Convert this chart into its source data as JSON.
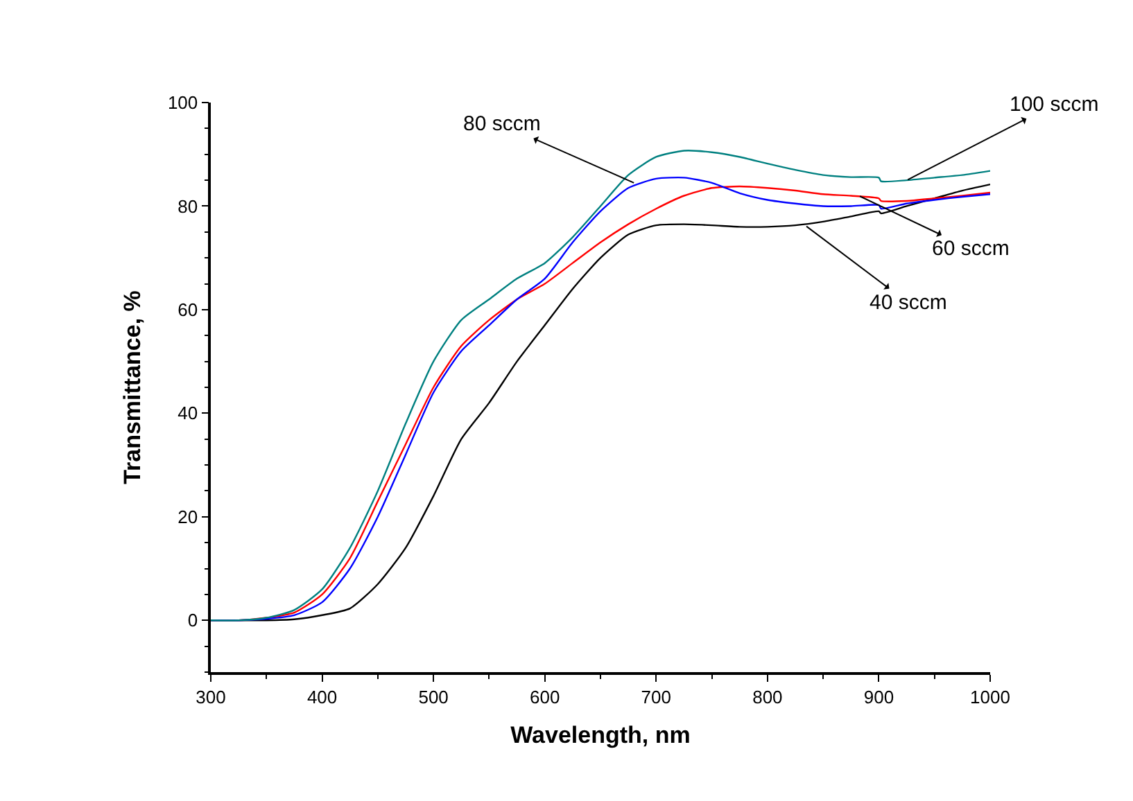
{
  "chart_data": {
    "type": "line",
    "xlabel": "Wavelength, nm",
    "ylabel": "Transmittance, %",
    "xlim": [
      300,
      1000
    ],
    "xticks": [
      300,
      400,
      500,
      600,
      700,
      800,
      900,
      1000
    ],
    "ylim": [
      -10,
      100
    ],
    "yticks": [
      0,
      20,
      40,
      60,
      80,
      100
    ],
    "marker": "none",
    "line_style": "solid",
    "x": [
      300,
      325,
      350,
      375,
      400,
      425,
      450,
      475,
      500,
      525,
      550,
      575,
      600,
      625,
      650,
      675,
      700,
      725,
      750,
      775,
      800,
      825,
      850,
      875,
      900,
      902,
      925,
      950,
      975,
      1000
    ],
    "series": [
      {
        "color": "#000000",
        "values": [
          0,
          0,
          0,
          0.2,
          1,
          2.3,
          7,
          14,
          24,
          35,
          42,
          50,
          57,
          64,
          70,
          74.5,
          76.3,
          76.5,
          76.3,
          76,
          76,
          76.3,
          77,
          78,
          79,
          78.6,
          80,
          81.5,
          83,
          84.2
        ]
      },
      {
        "color": "#ff0000",
        "values": [
          0,
          0,
          0.5,
          1.5,
          5,
          12,
          23,
          34,
          45,
          53,
          58,
          62,
          65,
          69,
          73,
          76.5,
          79.5,
          82,
          83.5,
          83.8,
          83.5,
          83,
          82.3,
          82,
          81.5,
          81,
          81,
          81.5,
          82,
          82.6
        ]
      },
      {
        "color": "#0000ff",
        "values": [
          0,
          0,
          0.3,
          1,
          3.5,
          10,
          20,
          32,
          44,
          52,
          57,
          62,
          66,
          73,
          79,
          83.5,
          85.3,
          85.5,
          84.5,
          82.5,
          81.2,
          80.5,
          80,
          80,
          80.2,
          79.5,
          80.5,
          81.2,
          81.8,
          82.3
        ]
      },
      {
        "color": "#008080",
        "values": [
          0,
          0,
          0.5,
          2,
          6,
          14,
          25,
          38,
          50,
          58,
          62,
          66,
          69,
          74,
          80,
          86,
          89.5,
          90.7,
          90.4,
          89.5,
          88.2,
          87,
          86,
          85.6,
          85.5,
          84.8,
          85,
          85.5,
          86,
          86.8
        ]
      }
    ],
    "annotations": [
      {
        "text": "80 sccm",
        "x": 680,
        "y": 84.5
      },
      {
        "text": "100 sccm",
        "x": 926,
        "y": 85.1
      },
      {
        "text": "60 sccm",
        "x": 883,
        "y": 81.9
      },
      {
        "text": "40 sccm",
        "x": 835,
        "y": 76.1
      }
    ]
  }
}
